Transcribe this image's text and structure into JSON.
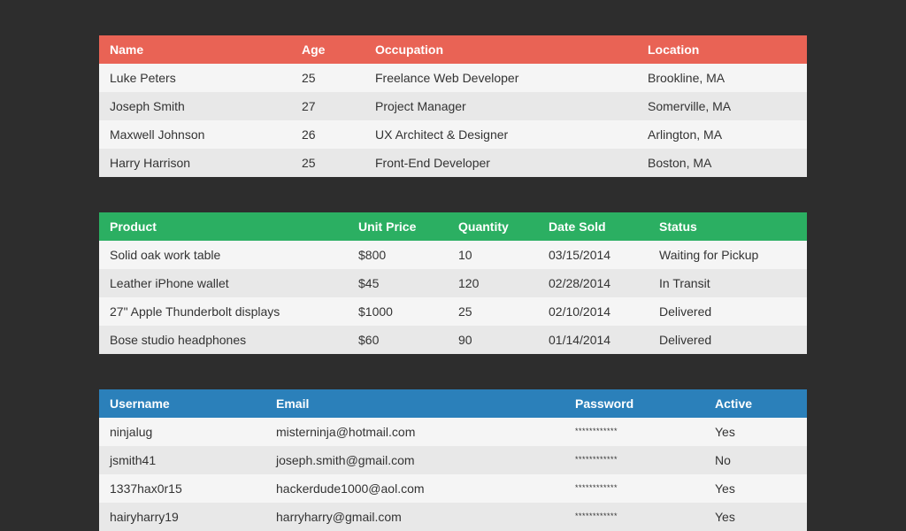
{
  "people": {
    "headers": [
      "Name",
      "Age",
      "Occupation",
      "Location"
    ],
    "rows": [
      [
        "Luke Peters",
        "25",
        "Freelance Web Developer",
        "Brookline, MA"
      ],
      [
        "Joseph Smith",
        "27",
        "Project Manager",
        "Somerville, MA"
      ],
      [
        "Maxwell Johnson",
        "26",
        "UX Architect & Designer",
        "Arlington, MA"
      ],
      [
        "Harry Harrison",
        "25",
        "Front-End Developer",
        "Boston, MA"
      ]
    ],
    "header_color": "#e96355"
  },
  "products": {
    "headers": [
      "Product",
      "Unit Price",
      "Quantity",
      "Date Sold",
      "Status"
    ],
    "rows": [
      [
        "Solid oak work table",
        "$800",
        "10",
        "03/15/2014",
        "Waiting for Pickup"
      ],
      [
        "Leather iPhone wallet",
        "$45",
        "120",
        "02/28/2014",
        "In Transit"
      ],
      [
        "27\" Apple Thunderbolt displays",
        "$1000",
        "25",
        "02/10/2014",
        "Delivered"
      ],
      [
        "Bose studio headphones",
        "$60",
        "90",
        "01/14/2014",
        "Delivered"
      ]
    ],
    "header_color": "#2baf62"
  },
  "users": {
    "headers": [
      "Username",
      "Email",
      "Password",
      "Active"
    ],
    "rows": [
      [
        "ninjalug",
        "misterninja@hotmail.com",
        "************",
        "Yes"
      ],
      [
        "jsmith41",
        "joseph.smith@gmail.com",
        "************",
        "No"
      ],
      [
        "1337hax0r15",
        "hackerdude1000@aol.com",
        "************",
        "Yes"
      ],
      [
        "hairyharry19",
        "harryharry@gmail.com",
        "************",
        "Yes"
      ]
    ],
    "header_color": "#2b80ba"
  }
}
